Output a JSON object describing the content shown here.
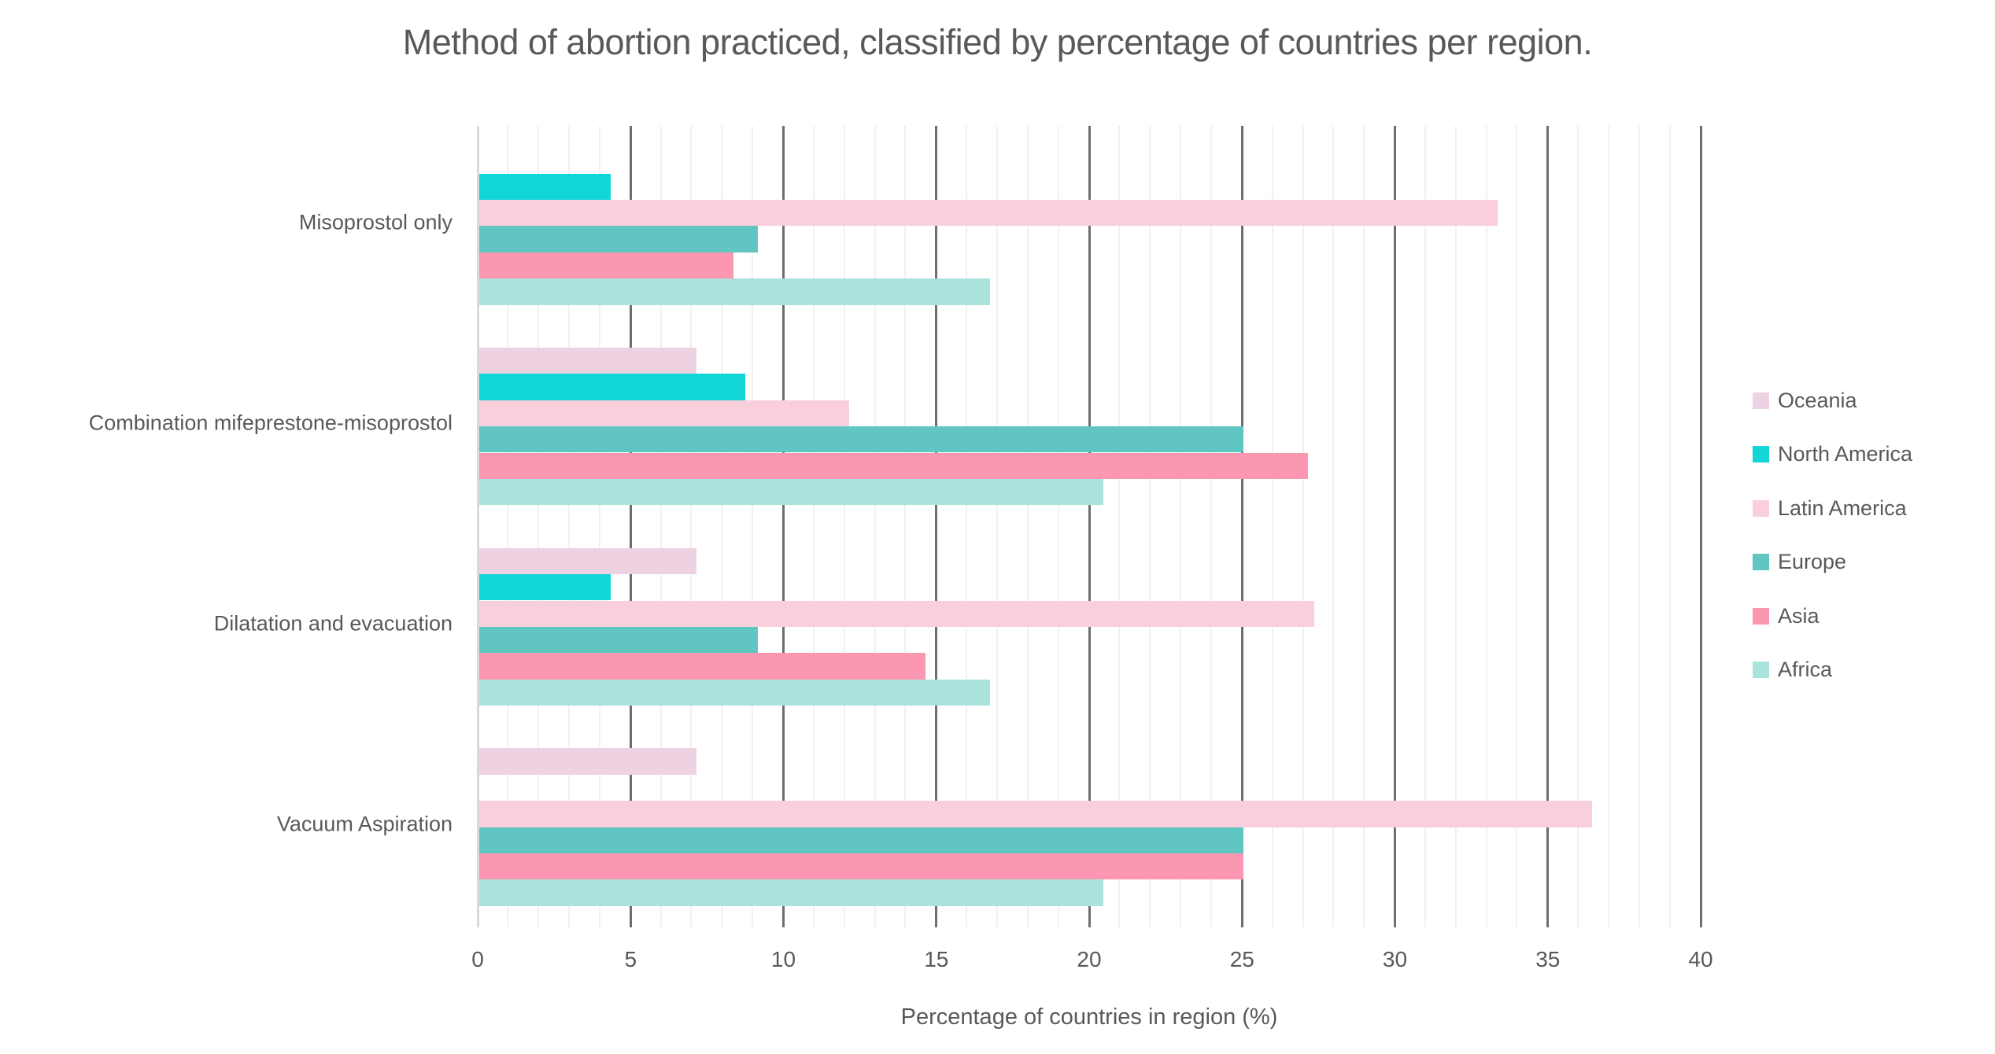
{
  "chart_data": {
    "type": "bar",
    "orientation": "horizontal",
    "title": "Method of abortion practiced, classified by percentage of countries per region.",
    "xlabel": "Percentage of countries in region (%)",
    "ylabel": "",
    "categories": [
      "Misoprostol only",
      "Combination mifeprestone-misoprostol",
      "Dilatation and evacuation",
      "Vacuum Aspiration"
    ],
    "series": [
      {
        "name": "Oceania",
        "color": "#efd2e2",
        "values": [
          0,
          7.1,
          7.1,
          7.1
        ]
      },
      {
        "name": "North America",
        "color": "#11d5d6",
        "values": [
          4.3,
          8.7,
          4.3,
          0
        ]
      },
      {
        "name": "Latin America",
        "color": "#f9cfdb",
        "values": [
          33.3,
          12.1,
          27.3,
          36.4
        ]
      },
      {
        "name": "Europe",
        "color": "#61c6c2",
        "values": [
          9.1,
          25,
          9.1,
          25
        ]
      },
      {
        "name": "Asia",
        "color": "#fb97b1",
        "values": [
          8.3,
          27.1,
          14.6,
          25
        ]
      },
      {
        "name": "Africa",
        "color": "#ace2dc",
        "values": [
          16.7,
          20.4,
          16.7,
          20.4
        ]
      }
    ],
    "xlim": [
      0,
      40
    ],
    "x_ticks": [
      0,
      5,
      10,
      15,
      20,
      25,
      30,
      35,
      40
    ],
    "x_major_step": 5,
    "x_minor_step": 1,
    "grid": true,
    "legend_position": "right"
  },
  "colors": {
    "text": "#595959",
    "major_grid": "#6e6e6e",
    "minor_grid": "#f1f1f1",
    "zero_line": "#d9d9d9",
    "background": "#ffffff"
  }
}
